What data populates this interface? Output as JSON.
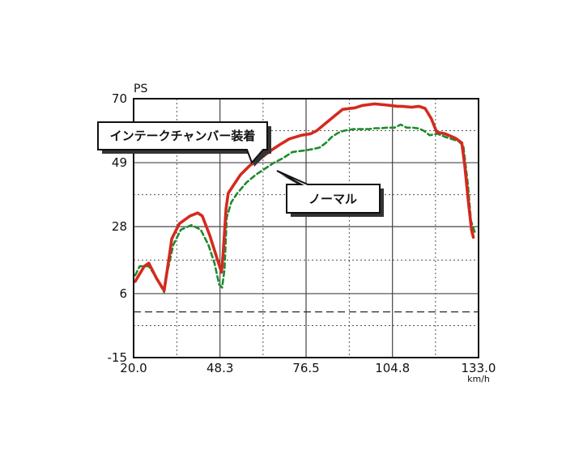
{
  "chart_data": {
    "type": "line",
    "ylabel": "PS",
    "xlabel": "km/h",
    "xlim": [
      20.0,
      133.0
    ],
    "ylim": [
      -15,
      70
    ],
    "x_ticks": [
      "20.0",
      "48.3",
      "76.5",
      "104.8",
      "133.0"
    ],
    "y_ticks": [
      "70",
      "49",
      "28",
      "6",
      "-15"
    ],
    "grid": true,
    "series": [
      {
        "name": "インテークチャンバー装着",
        "color": "#d42a1e",
        "style": "solid",
        "points": [
          [
            20.5,
            10
          ],
          [
            23.5,
            15
          ],
          [
            25.0,
            16
          ],
          [
            27.5,
            11
          ],
          [
            30.0,
            7
          ],
          [
            31.5,
            17
          ],
          [
            32.5,
            24
          ],
          [
            35.0,
            29
          ],
          [
            38.5,
            31.5
          ],
          [
            41.0,
            32.5
          ],
          [
            42.5,
            31.5
          ],
          [
            45.0,
            25
          ],
          [
            47.5,
            17
          ],
          [
            48.8,
            13
          ],
          [
            49.3,
            19
          ],
          [
            50.3,
            34
          ],
          [
            51.0,
            39
          ],
          [
            53.0,
            42
          ],
          [
            55.0,
            45
          ],
          [
            58.0,
            48
          ],
          [
            61.0,
            50
          ],
          [
            65.0,
            53
          ],
          [
            68.0,
            55
          ],
          [
            71.0,
            56.8
          ],
          [
            75.0,
            58
          ],
          [
            78.0,
            58.5
          ],
          [
            80.0,
            59.5
          ],
          [
            83.0,
            62
          ],
          [
            86.0,
            64.5
          ],
          [
            88.5,
            66.5
          ],
          [
            92.5,
            67
          ],
          [
            95.0,
            67.8
          ],
          [
            99.0,
            68.3
          ],
          [
            102.0,
            68
          ],
          [
            104.0,
            67.8
          ],
          [
            106.5,
            67.5
          ],
          [
            108.0,
            67.5
          ],
          [
            111.0,
            67.2
          ],
          [
            113.5,
            67.5
          ],
          [
            115.5,
            66.8
          ],
          [
            117.5,
            63.5
          ],
          [
            119.3,
            59
          ],
          [
            122.0,
            58.5
          ],
          [
            125.5,
            57
          ],
          [
            127.5,
            55.5
          ],
          [
            128.5,
            48
          ],
          [
            129.8,
            35
          ],
          [
            130.7,
            27
          ],
          [
            131.3,
            24.5
          ]
        ]
      },
      {
        "name": "ノーマル",
        "color": "#1f8a2e",
        "style": "dashed",
        "points": [
          [
            20.5,
            12
          ],
          [
            22.0,
            15
          ],
          [
            25.0,
            15
          ],
          [
            27.0,
            12
          ],
          [
            30.0,
            6.5
          ],
          [
            31.0,
            13
          ],
          [
            33.0,
            22
          ],
          [
            35.5,
            27
          ],
          [
            39.0,
            28.5
          ],
          [
            42.0,
            27
          ],
          [
            44.5,
            22
          ],
          [
            46.5,
            16
          ],
          [
            48.0,
            9
          ],
          [
            49.0,
            8
          ],
          [
            49.8,
            14
          ],
          [
            50.5,
            31
          ],
          [
            52.0,
            36
          ],
          [
            54.0,
            39
          ],
          [
            57.0,
            42.5
          ],
          [
            60.0,
            45
          ],
          [
            63.0,
            47
          ],
          [
            66.0,
            49
          ],
          [
            69.0,
            50.5
          ],
          [
            72.0,
            52.5
          ],
          [
            76.0,
            53
          ],
          [
            79.0,
            53.5
          ],
          [
            81.0,
            54
          ],
          [
            83.0,
            55.5
          ],
          [
            85.0,
            57.5
          ],
          [
            87.0,
            58.8
          ],
          [
            89.0,
            59.5
          ],
          [
            92.0,
            60
          ],
          [
            94.0,
            60
          ],
          [
            97.0,
            60
          ],
          [
            99.0,
            60.3
          ],
          [
            101.0,
            60.3
          ],
          [
            103.0,
            60.5
          ],
          [
            105.5,
            60.5
          ],
          [
            107.5,
            61.5
          ],
          [
            109.5,
            60.5
          ],
          [
            111.5,
            60.5
          ],
          [
            113.5,
            60.2
          ],
          [
            115.0,
            59.5
          ],
          [
            117.0,
            58
          ],
          [
            119.5,
            58.5
          ],
          [
            122.0,
            57.5
          ],
          [
            125.0,
            56.5
          ],
          [
            126.5,
            56
          ],
          [
            128.0,
            54.5
          ],
          [
            129.5,
            42
          ],
          [
            130.5,
            30
          ],
          [
            132.0,
            25.5
          ]
        ]
      }
    ],
    "reference_line": {
      "y": 0,
      "style": "dashed"
    }
  }
}
